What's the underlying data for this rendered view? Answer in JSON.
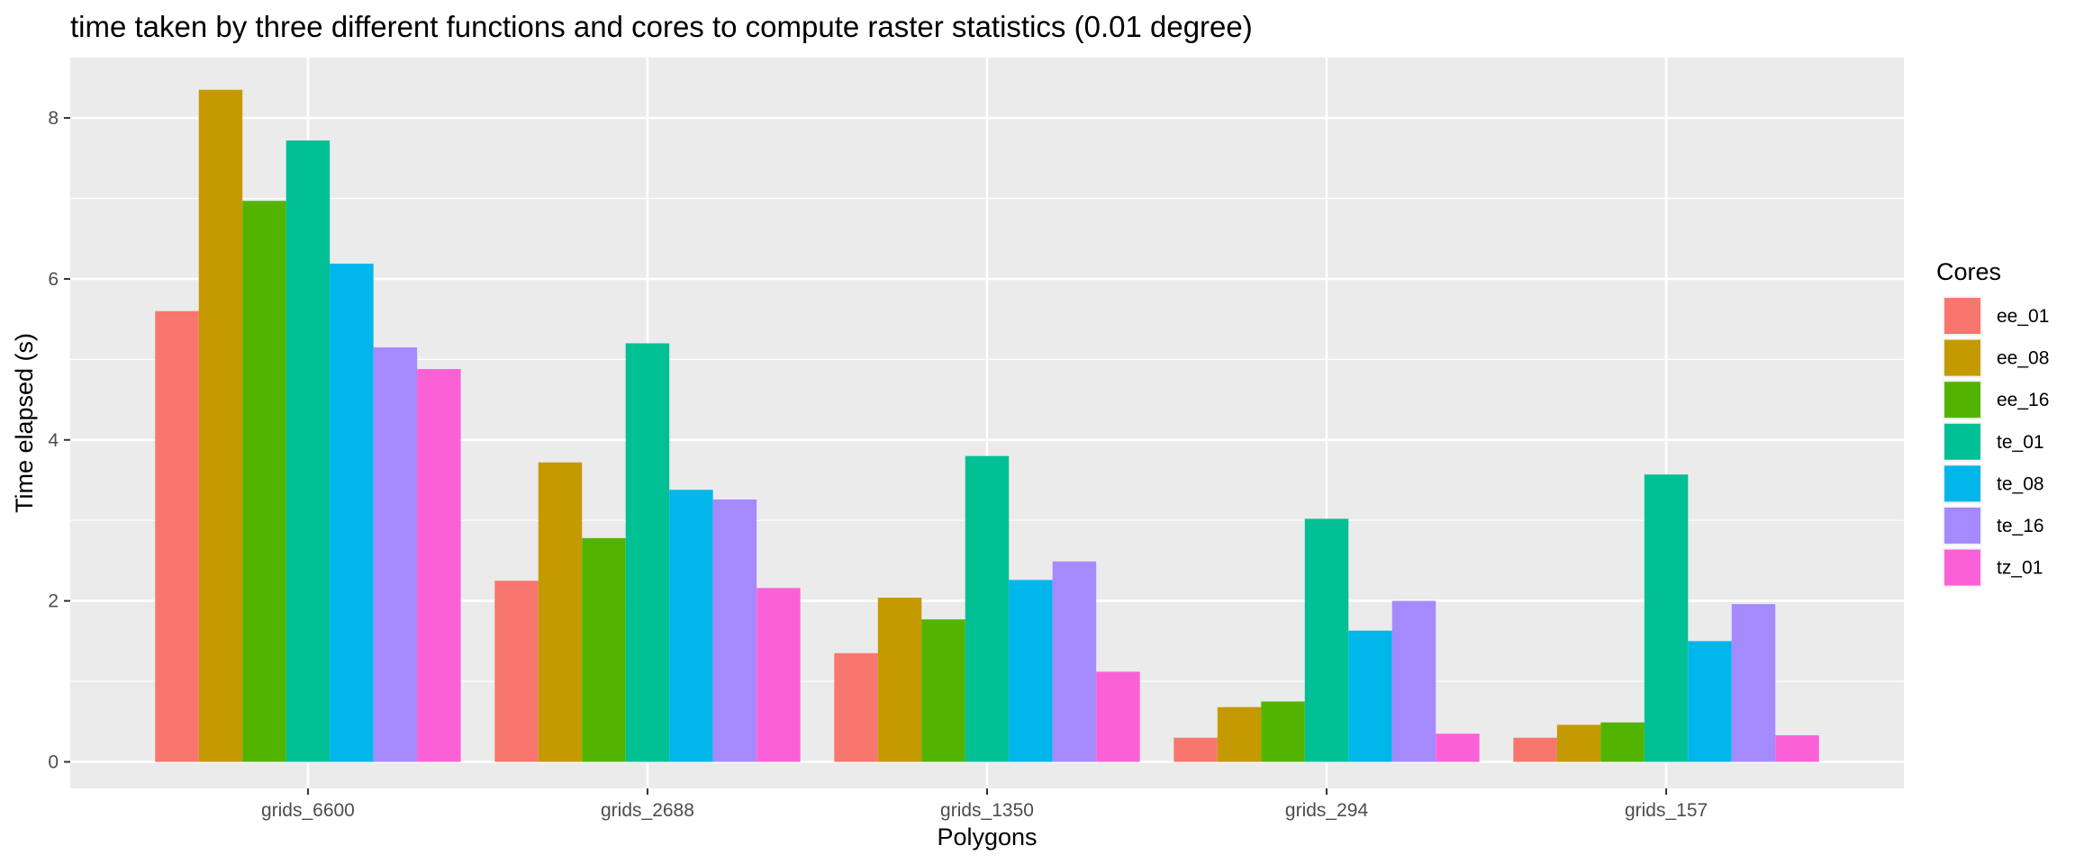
{
  "chart_data": {
    "type": "bar",
    "title": "time taken by three different functions and cores to compute raster statistics (0.01 degree)",
    "xlabel": "Polygons",
    "ylabel": "Time elapsed (s)",
    "categories": [
      "grids_6600",
      "grids_2688",
      "grids_1350",
      "grids_294",
      "grids_157"
    ],
    "ylim": [
      -0.33,
      8.75
    ],
    "yticks": [
      0,
      2,
      4,
      6,
      8
    ],
    "grid": true,
    "legend": {
      "title": "Cores",
      "position": "right"
    },
    "series": [
      {
        "name": "ee_01",
        "color": "#F8766D",
        "values": [
          5.6,
          2.25,
          1.35,
          0.3,
          0.3
        ]
      },
      {
        "name": "ee_08",
        "color": "#C49A00",
        "values": [
          8.35,
          3.72,
          2.04,
          0.68,
          0.46
        ]
      },
      {
        "name": "ee_16",
        "color": "#53B400",
        "values": [
          6.97,
          2.78,
          1.77,
          0.75,
          0.49
        ]
      },
      {
        "name": "te_01",
        "color": "#00C094",
        "values": [
          7.72,
          5.2,
          3.8,
          3.02,
          3.57
        ]
      },
      {
        "name": "te_08",
        "color": "#00B6EB",
        "values": [
          6.19,
          3.38,
          2.26,
          1.63,
          1.5
        ]
      },
      {
        "name": "te_16",
        "color": "#A58AFF",
        "values": [
          5.15,
          3.26,
          2.49,
          2.0,
          1.96
        ]
      },
      {
        "name": "tz_01",
        "color": "#FB61D7",
        "values": [
          4.88,
          2.16,
          1.12,
          0.35,
          0.33
        ]
      }
    ]
  }
}
